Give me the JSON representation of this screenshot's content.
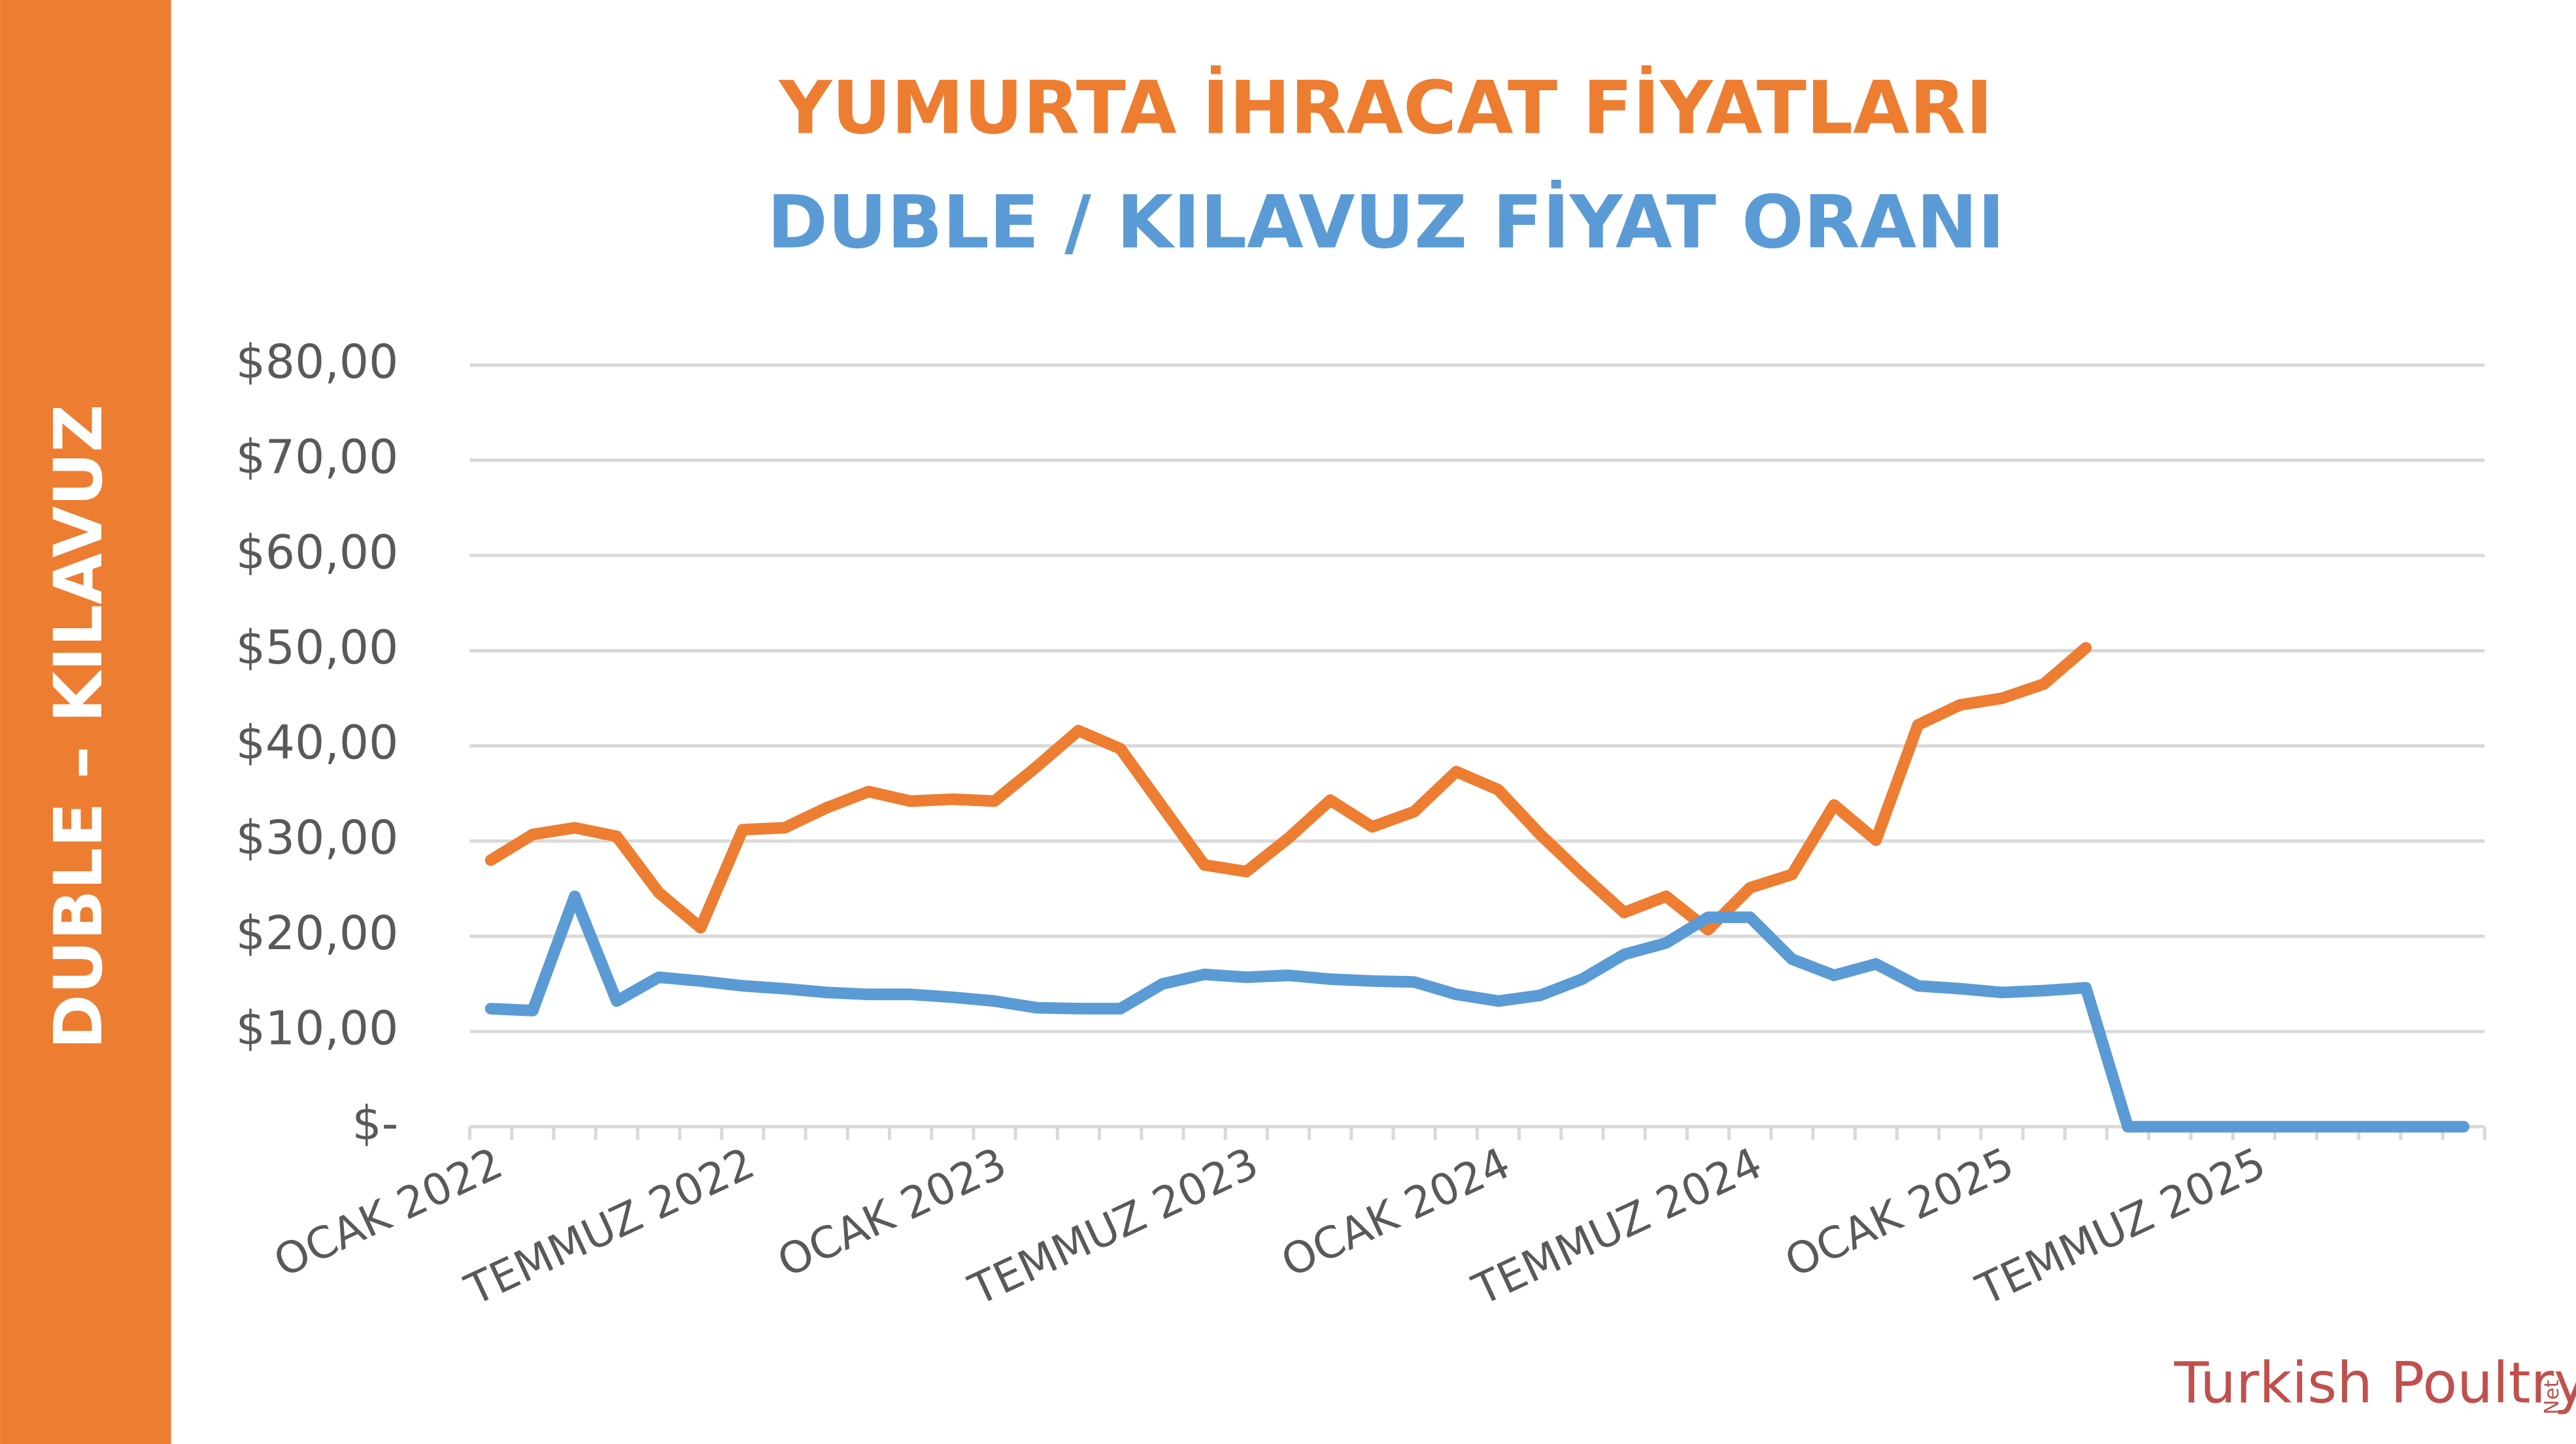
{
  "chart_data": {
    "type": "line",
    "title": "YUMURTA İHRACAT FİYATLARI",
    "subtitle": "DUBLE / KILAVUZ  FİYAT ORANI",
    "side_label": "DUBLE – KILAVUZ",
    "logo": "Turkish Poultry",
    "logo_suffix": "Net",
    "categories": [
      "OCAK 2022",
      null,
      null,
      null,
      null,
      null,
      "TEMMUZ 2022",
      null,
      null,
      null,
      null,
      null,
      "OCAK 2023",
      null,
      null,
      null,
      null,
      null,
      "TEMMUZ 2023",
      null,
      null,
      null,
      null,
      null,
      "OCAK 2024",
      null,
      null,
      null,
      null,
      null,
      "TEMMUZ 2024",
      null,
      null,
      null,
      null,
      null,
      "OCAK 2025",
      null,
      null,
      null,
      null,
      null,
      "TEMMUZ 2025",
      null,
      null,
      null,
      null,
      null
    ],
    "series": [
      {
        "color": "#ED7D31",
        "values": [
          28,
          30.7,
          31.4,
          30.5,
          24.6,
          20.9,
          31.2,
          31.4,
          33.5,
          35.2,
          34.2,
          34.4,
          34.2,
          37.8,
          41.6,
          39.7,
          33.6,
          27.5,
          26.8,
          30.3,
          34.3,
          31.5,
          33.1,
          37.3,
          35.4,
          30.7,
          26.5,
          22.5,
          24.2,
          20.7,
          25.1,
          26.5,
          33.8,
          30.1,
          42.2,
          44.3,
          45.0,
          46.5,
          50.3,
          null,
          null,
          null,
          null,
          null,
          null,
          null,
          null,
          null
        ]
      },
      {
        "color": "#5B9BD5",
        "values": [
          12.4,
          12.2,
          24.2,
          13.2,
          15.7,
          15.3,
          14.8,
          14.5,
          14.1,
          13.9,
          13.9,
          13.6,
          13.2,
          12.5,
          12.4,
          12.4,
          15.0,
          16.0,
          15.7,
          15.9,
          15.5,
          15.3,
          15.2,
          13.9,
          13.2,
          13.8,
          15.5,
          18.1,
          19.3,
          22.0,
          22.0,
          17.6,
          15.9,
          17.1,
          14.8,
          14.5,
          14.1,
          14.3,
          14.6,
          0,
          0,
          0,
          0,
          0,
          0,
          0,
          0,
          0
        ]
      }
    ],
    "ylim": [
      0,
      80
    ],
    "yticks": [
      {
        "value": 0,
        "label": "$-"
      },
      {
        "value": 10,
        "label": "$10,00"
      },
      {
        "value": 20,
        "label": "$20,00"
      },
      {
        "value": 30,
        "label": "$30,00"
      },
      {
        "value": 40,
        "label": "$40,00"
      },
      {
        "value": 50,
        "label": "$50,00"
      },
      {
        "value": 60,
        "label": "$60,00"
      },
      {
        "value": 70,
        "label": "$70,00"
      },
      {
        "value": 80,
        "label": "$80,00"
      }
    ],
    "grid": true
  }
}
